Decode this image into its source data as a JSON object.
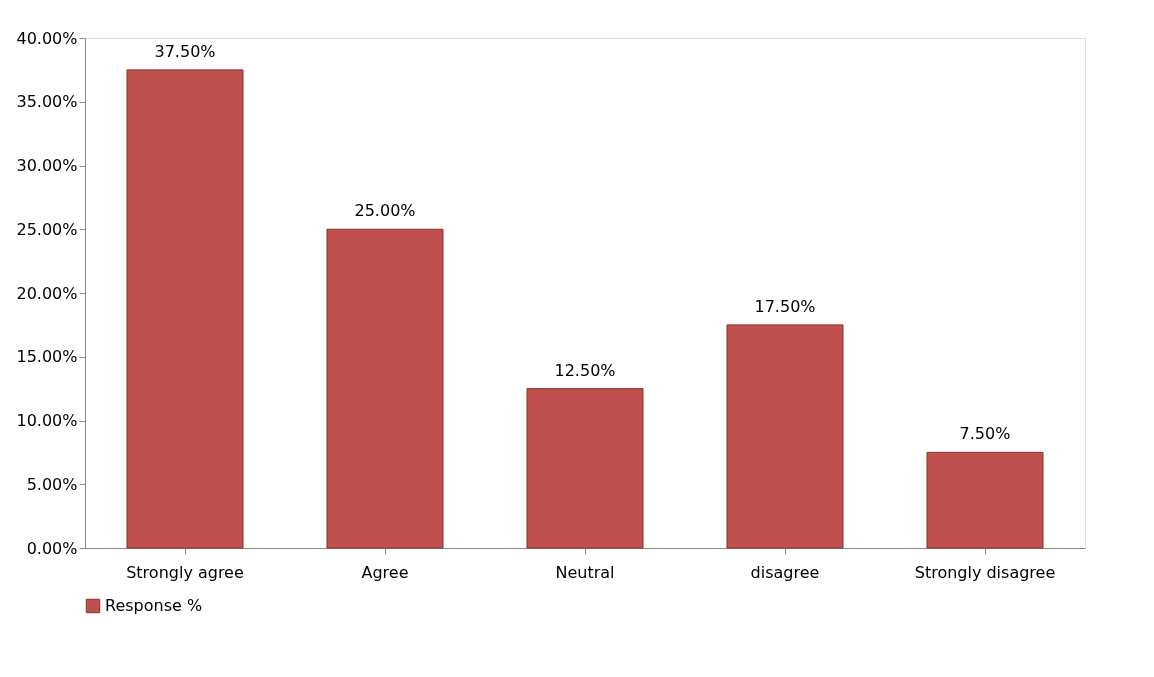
{
  "chart_data": {
    "type": "bar",
    "categories": [
      "Strongly agree",
      "Agree",
      "Neutral",
      "disagree",
      "Strongly disagree"
    ],
    "series": [
      {
        "name": "Response %",
        "color": "#c0504d",
        "values": [
          37.5,
          25.0,
          12.5,
          17.5,
          7.5
        ],
        "value_labels": [
          "37.50%",
          "25.00%",
          "12.50%",
          "17.50%",
          "7.50%"
        ]
      }
    ],
    "ylim": [
      0,
      40
    ],
    "yticks": [
      {
        "value": 0,
        "label": "0.00%"
      },
      {
        "value": 5,
        "label": "5.00%"
      },
      {
        "value": 10,
        "label": "10.00%"
      },
      {
        "value": 15,
        "label": "15.00%"
      },
      {
        "value": 20,
        "label": "20.00%"
      },
      {
        "value": 25,
        "label": "25.00%"
      },
      {
        "value": 30,
        "label": "30.00%"
      },
      {
        "value": 35,
        "label": "35.00%"
      },
      {
        "value": 40,
        "label": "40.00%"
      }
    ],
    "grid": false,
    "legend": "bottom"
  }
}
